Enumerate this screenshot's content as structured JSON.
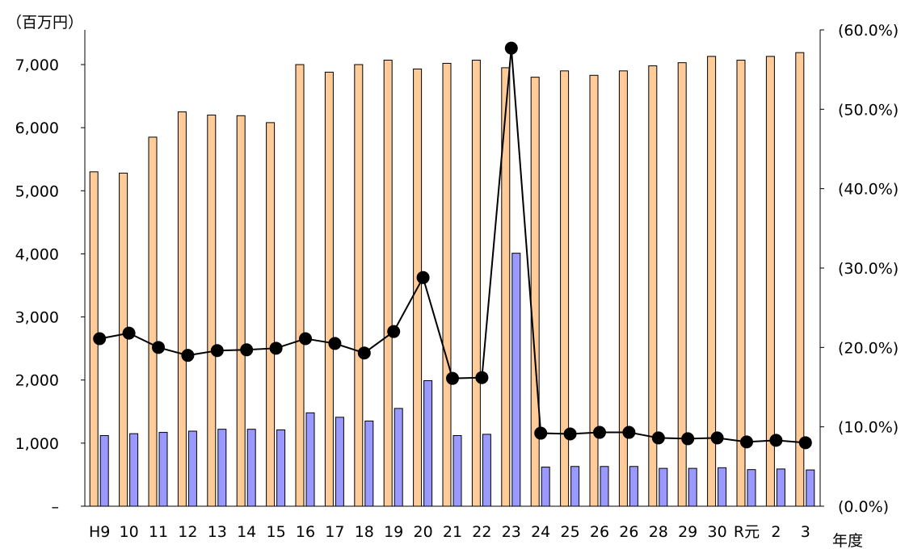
{
  "chart_data": {
    "type": "bar",
    "categories": [
      "H9",
      "10",
      "11",
      "12",
      "13",
      "14",
      "15",
      "16",
      "17",
      "18",
      "19",
      "20",
      "21",
      "22",
      "23",
      "24",
      "25",
      "26",
      "26",
      "28",
      "29",
      "30",
      "R元",
      "2",
      "3"
    ],
    "series": [
      {
        "values": [
          5300,
          5280,
          5850,
          6250,
          6200,
          6190,
          6080,
          7000,
          6880,
          7000,
          7070,
          6930,
          7020,
          7070,
          6950,
          6800,
          6900,
          6830,
          6900,
          6980,
          7030,
          7130,
          7070,
          7130,
          7190
        ]
      },
      {
        "values": [
          1120,
          1150,
          1170,
          1190,
          1220,
          1220,
          1210,
          1480,
          1410,
          1350,
          1550,
          1990,
          1120,
          1140,
          4010,
          620,
          630,
          630,
          630,
          600,
          600,
          610,
          580,
          590,
          575
        ]
      },
      {
        "type": "line",
        "axis": "right",
        "values": [
          21.1,
          21.8,
          20.0,
          19.0,
          19.6,
          19.7,
          19.9,
          21.1,
          20.5,
          19.3,
          22.0,
          28.8,
          16.1,
          16.2,
          57.7,
          9.2,
          9.1,
          9.3,
          9.3,
          8.6,
          8.5,
          8.6,
          8.1,
          8.3,
          8.0
        ]
      }
    ],
    "y_left": {
      "ylim": [
        0,
        7000
      ],
      "ticks": [
        "–",
        "1,000",
        "2,000",
        "3,000",
        "4,000",
        "5,000",
        "6,000",
        "7,000"
      ],
      "unit_label": "（百万円）"
    },
    "y_right": {
      "ylim": [
        0,
        60
      ],
      "ticks": [
        "(0.0%)",
        "(10.0%)",
        "(20.0%)",
        "(30.0%)",
        "(40.0%)",
        "(50.0%)",
        "(60.0%)"
      ]
    },
    "xlabel": "年度",
    "legend": "none",
    "grid": false,
    "colors": {
      "bar_total": "#FFCC99",
      "bar_sub": "#9999FF",
      "outline": "#000000",
      "line": "#000000"
    }
  }
}
